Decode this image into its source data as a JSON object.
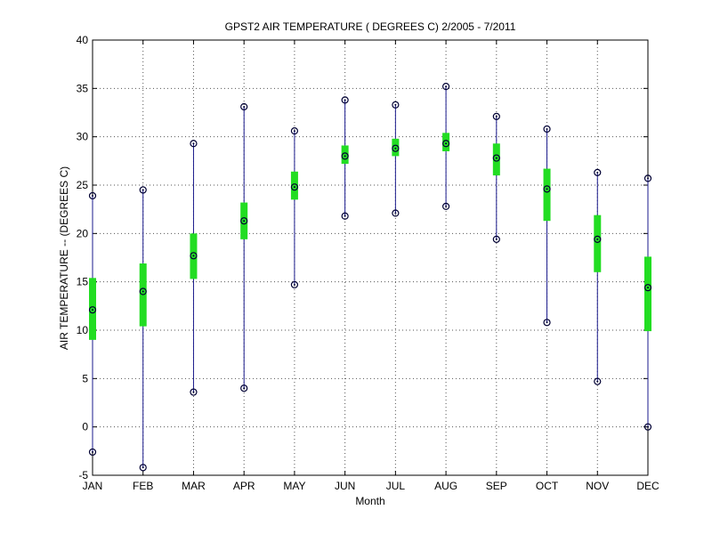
{
  "chart_data": {
    "type": "box",
    "title": "GPST2  AIR TEMPERATURE ( DEGREES C) 2/2005 - 7/2011",
    "xlabel": "Month",
    "ylabel": "AIR TEMPERATURE -- (DEGREES C)",
    "ylim": [
      -5,
      40
    ],
    "yticks": [
      -5,
      0,
      5,
      10,
      15,
      20,
      25,
      30,
      35,
      40
    ],
    "grid": true,
    "categories": [
      "JAN",
      "FEB",
      "MAR",
      "APR",
      "MAY",
      "JUN",
      "JUL",
      "AUG",
      "SEP",
      "OCT",
      "NOV",
      "DEC"
    ],
    "series": [
      {
        "min": [
          -2.6,
          -4.2,
          3.6,
          4.0,
          14.7,
          21.8,
          22.1,
          22.8,
          19.4,
          10.8,
          4.7,
          0.0
        ],
        "q1": [
          9.0,
          10.4,
          15.3,
          19.4,
          23.5,
          27.2,
          28.0,
          28.5,
          26.0,
          21.3,
          16.0,
          9.9
        ],
        "median": [
          12.1,
          14.0,
          17.7,
          21.3,
          24.8,
          28.0,
          28.8,
          29.3,
          27.8,
          24.6,
          19.4,
          14.4
        ],
        "q3": [
          15.4,
          16.9,
          20.0,
          23.2,
          26.4,
          29.1,
          29.8,
          30.4,
          29.3,
          26.7,
          21.9,
          17.6
        ],
        "max": [
          23.9,
          24.5,
          29.3,
          33.1,
          30.6,
          33.8,
          33.3,
          35.2,
          32.1,
          30.8,
          26.3,
          25.7
        ]
      }
    ],
    "colors": {
      "whisker": "#1a1a8c",
      "box": "#22dd22",
      "marker": "#000033",
      "grid": "#555555"
    }
  }
}
